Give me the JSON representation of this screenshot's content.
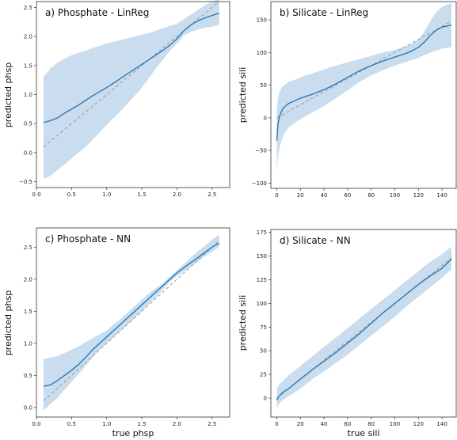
{
  "chart_data": [
    {
      "type": "line",
      "title": "a) Phosphate - LinReg",
      "xlabel": "",
      "ylabel": "predicted phsp",
      "xlim": [
        0,
        2.75
      ],
      "ylim": [
        -0.6,
        2.6
      ],
      "xticks": [
        0.0,
        0.5,
        1.0,
        1.5,
        2.0,
        2.5
      ],
      "yticks": [
        -0.5,
        0.0,
        0.5,
        1.0,
        1.5,
        2.0,
        2.5
      ],
      "xtick_labels": [
        "0.0",
        "0.5",
        "1.0",
        "1.5",
        "2.0",
        "2.5"
      ],
      "ytick_labels": [
        "−0.5",
        "0.0",
        "0.5",
        "1.0",
        "1.5",
        "2.0",
        "2.5"
      ],
      "series": [
        {
          "role": "mean",
          "x": [
            0.1,
            0.2,
            0.3,
            0.4,
            0.5,
            0.6,
            0.7,
            0.8,
            0.9,
            1.0,
            1.1,
            1.2,
            1.3,
            1.4,
            1.5,
            1.6,
            1.7,
            1.8,
            1.9,
            2.0,
            2.1,
            2.2,
            2.3,
            2.4,
            2.5,
            2.6
          ],
          "y": [
            0.52,
            0.55,
            0.6,
            0.68,
            0.75,
            0.82,
            0.9,
            0.98,
            1.05,
            1.12,
            1.2,
            1.28,
            1.36,
            1.44,
            1.52,
            1.6,
            1.68,
            1.76,
            1.85,
            1.96,
            2.1,
            2.2,
            2.27,
            2.32,
            2.36,
            2.4
          ]
        },
        {
          "role": "band_low",
          "x": [
            0.1,
            0.2,
            0.3,
            0.4,
            0.5,
            0.6,
            0.7,
            0.8,
            0.9,
            1.0,
            1.1,
            1.2,
            1.3,
            1.4,
            1.5,
            1.6,
            1.7,
            1.8,
            1.9,
            2.0,
            2.1,
            2.2,
            2.3,
            2.4,
            2.5,
            2.6
          ],
          "y": [
            -0.45,
            -0.4,
            -0.3,
            -0.2,
            -0.1,
            0.0,
            0.1,
            0.22,
            0.35,
            0.48,
            0.6,
            0.72,
            0.85,
            0.98,
            1.12,
            1.28,
            1.45,
            1.6,
            1.75,
            1.88,
            2.02,
            2.08,
            2.12,
            2.15,
            2.17,
            2.2
          ]
        },
        {
          "role": "band_high",
          "x": [
            0.1,
            0.2,
            0.3,
            0.4,
            0.5,
            0.6,
            0.7,
            0.8,
            0.9,
            1.0,
            1.1,
            1.2,
            1.3,
            1.4,
            1.5,
            1.6,
            1.7,
            1.8,
            1.9,
            2.0,
            2.1,
            2.2,
            2.3,
            2.4,
            2.5,
            2.6
          ],
          "y": [
            1.3,
            1.45,
            1.55,
            1.62,
            1.68,
            1.72,
            1.76,
            1.8,
            1.84,
            1.88,
            1.91,
            1.94,
            1.97,
            2.0,
            2.03,
            2.06,
            2.1,
            2.14,
            2.18,
            2.22,
            2.3,
            2.38,
            2.46,
            2.54,
            2.6,
            2.65
          ]
        },
        {
          "role": "identity",
          "x": [
            0.1,
            2.6
          ],
          "y": [
            0.1,
            2.6
          ]
        }
      ]
    },
    {
      "type": "line",
      "title": "b) Silicate - LinReg",
      "xlabel": "",
      "ylabel": "predicted sili",
      "xlim": [
        -5,
        152
      ],
      "ylim": [
        -108,
        178
      ],
      "xticks": [
        0,
        20,
        40,
        60,
        80,
        100,
        120,
        140
      ],
      "yticks": [
        -100,
        -50,
        0,
        50,
        100,
        150
      ],
      "xtick_labels": [
        "0",
        "20",
        "40",
        "60",
        "80",
        "100",
        "120",
        "140"
      ],
      "ytick_labels": [
        "−100",
        "−50",
        "0",
        "50",
        "100",
        "150"
      ],
      "series": [
        {
          "role": "mean",
          "x": [
            0,
            1,
            2,
            4,
            6,
            10,
            15,
            20,
            30,
            40,
            50,
            60,
            70,
            80,
            90,
            100,
            110,
            115,
            120,
            125,
            130,
            135,
            140,
            148
          ],
          "y": [
            -35,
            -10,
            0,
            10,
            16,
            22,
            26,
            30,
            36,
            43,
            52,
            62,
            72,
            80,
            87,
            93,
            99,
            103,
            108,
            116,
            126,
            134,
            139,
            142
          ]
        },
        {
          "role": "band_low",
          "x": [
            0,
            1,
            2,
            4,
            6,
            10,
            15,
            20,
            30,
            40,
            50,
            60,
            70,
            80,
            90,
            100,
            110,
            115,
            120,
            125,
            130,
            135,
            140,
            148
          ],
          "y": [
            -82,
            -60,
            -48,
            -35,
            -25,
            -15,
            -8,
            -2,
            8,
            18,
            30,
            42,
            55,
            65,
            73,
            80,
            86,
            89,
            92,
            96,
            100,
            103,
            106,
            108
          ]
        },
        {
          "role": "band_high",
          "x": [
            0,
            1,
            2,
            4,
            6,
            10,
            15,
            20,
            30,
            40,
            50,
            60,
            70,
            80,
            90,
            100,
            110,
            115,
            120,
            125,
            130,
            135,
            140,
            148
          ],
          "y": [
            10,
            30,
            38,
            46,
            50,
            55,
            58,
            62,
            68,
            74,
            80,
            85,
            90,
            95,
            100,
            104,
            110,
            114,
            120,
            132,
            148,
            162,
            170,
            176
          ]
        },
        {
          "role": "identity",
          "x": [
            0,
            148
          ],
          "y": [
            0,
            148
          ]
        }
      ]
    },
    {
      "type": "line",
      "title": "c) Phosphate - NN",
      "xlabel": "true phsp",
      "ylabel": "predicted phsp",
      "xlim": [
        0,
        2.75
      ],
      "ylim": [
        -0.15,
        2.8
      ],
      "xticks": [
        0.0,
        0.5,
        1.0,
        1.5,
        2.0,
        2.5
      ],
      "yticks": [
        0.0,
        0.5,
        1.0,
        1.5,
        2.0,
        2.5
      ],
      "xtick_labels": [
        "0.0",
        "0.5",
        "1.0",
        "1.5",
        "2.0",
        "2.5"
      ],
      "ytick_labels": [
        "0.0",
        "0.5",
        "1.0",
        "1.5",
        "2.0",
        "2.5"
      ],
      "series": [
        {
          "role": "mean",
          "x": [
            0.1,
            0.2,
            0.3,
            0.4,
            0.5,
            0.6,
            0.7,
            0.8,
            0.9,
            1.0,
            1.1,
            1.2,
            1.3,
            1.4,
            1.5,
            1.6,
            1.7,
            1.8,
            1.9,
            2.0,
            2.1,
            2.2,
            2.3,
            2.4,
            2.5,
            2.6
          ],
          "y": [
            0.33,
            0.35,
            0.42,
            0.5,
            0.58,
            0.67,
            0.78,
            0.9,
            1.0,
            1.1,
            1.2,
            1.3,
            1.4,
            1.5,
            1.6,
            1.7,
            1.8,
            1.9,
            2.0,
            2.1,
            2.18,
            2.26,
            2.34,
            2.42,
            2.5,
            2.56
          ]
        },
        {
          "role": "band_low",
          "x": [
            0.1,
            0.2,
            0.3,
            0.4,
            0.5,
            0.6,
            0.7,
            0.8,
            0.9,
            1.0,
            1.1,
            1.2,
            1.3,
            1.4,
            1.5,
            1.6,
            1.7,
            1.8,
            1.9,
            2.0,
            2.1,
            2.2,
            2.3,
            2.4,
            2.5,
            2.6
          ],
          "y": [
            -0.05,
            0.05,
            0.15,
            0.28,
            0.4,
            0.52,
            0.65,
            0.78,
            0.9,
            1.0,
            1.1,
            1.2,
            1.3,
            1.4,
            1.5,
            1.62,
            1.72,
            1.84,
            1.96,
            2.05,
            2.12,
            2.2,
            2.28,
            2.36,
            2.43,
            2.5
          ]
        },
        {
          "role": "band_high",
          "x": [
            0.1,
            0.2,
            0.3,
            0.4,
            0.5,
            0.6,
            0.7,
            0.8,
            0.9,
            1.0,
            1.1,
            1.2,
            1.3,
            1.4,
            1.5,
            1.6,
            1.7,
            1.8,
            1.9,
            2.0,
            2.1,
            2.2,
            2.3,
            2.4,
            2.5,
            2.6
          ],
          "y": [
            0.75,
            0.78,
            0.8,
            0.85,
            0.9,
            0.95,
            1.02,
            1.08,
            1.14,
            1.2,
            1.3,
            1.38,
            1.48,
            1.58,
            1.68,
            1.78,
            1.86,
            1.94,
            2.04,
            2.14,
            2.24,
            2.34,
            2.44,
            2.52,
            2.62,
            2.7
          ]
        },
        {
          "role": "identity",
          "x": [
            0.1,
            2.6
          ],
          "y": [
            0.1,
            2.6
          ]
        }
      ]
    },
    {
      "type": "line",
      "title": "d) Silicate - NN",
      "xlabel": "true sili",
      "ylabel": "predicted sili",
      "xlim": [
        -5,
        152
      ],
      "ylim": [
        -20,
        178
      ],
      "xticks": [
        0,
        20,
        40,
        60,
        80,
        100,
        120,
        140
      ],
      "yticks": [
        0,
        25,
        50,
        75,
        100,
        125,
        150,
        175
      ],
      "xtick_labels": [
        "0",
        "20",
        "40",
        "60",
        "80",
        "100",
        "120",
        "140"
      ],
      "ytick_labels": [
        "0",
        "25",
        "50",
        "75",
        "100",
        "125",
        "150",
        "175"
      ],
      "series": [
        {
          "role": "mean",
          "x": [
            0,
            2,
            5,
            10,
            20,
            30,
            40,
            50,
            60,
            70,
            80,
            90,
            100,
            110,
            120,
            130,
            140,
            148
          ],
          "y": [
            -2,
            2,
            6,
            10,
            20,
            30,
            39,
            48,
            58,
            68,
            79,
            90,
            100,
            110,
            120,
            129,
            137,
            147
          ]
        },
        {
          "role": "band_low",
          "x": [
            0,
            2,
            5,
            10,
            20,
            30,
            40,
            50,
            60,
            70,
            80,
            90,
            100,
            110,
            120,
            130,
            140,
            148
          ],
          "y": [
            -10,
            -6,
            -2,
            2,
            10,
            20,
            28,
            37,
            46,
            56,
            66,
            76,
            86,
            97,
            107,
            117,
            127,
            136
          ]
        },
        {
          "role": "band_high",
          "x": [
            0,
            2,
            5,
            10,
            20,
            30,
            40,
            50,
            60,
            70,
            80,
            90,
            100,
            110,
            120,
            130,
            140,
            148
          ],
          "y": [
            10,
            14,
            18,
            24,
            34,
            44,
            54,
            64,
            74,
            84,
            94,
            104,
            114,
            124,
            134,
            144,
            152,
            160
          ]
        },
        {
          "role": "identity",
          "x": [
            0,
            148
          ],
          "y": [
            0,
            148
          ]
        }
      ]
    }
  ],
  "colors": {
    "line": "#2b79b5",
    "band": "#c9ddee",
    "identity": "#9a9a9a",
    "axis": "#333333"
  }
}
